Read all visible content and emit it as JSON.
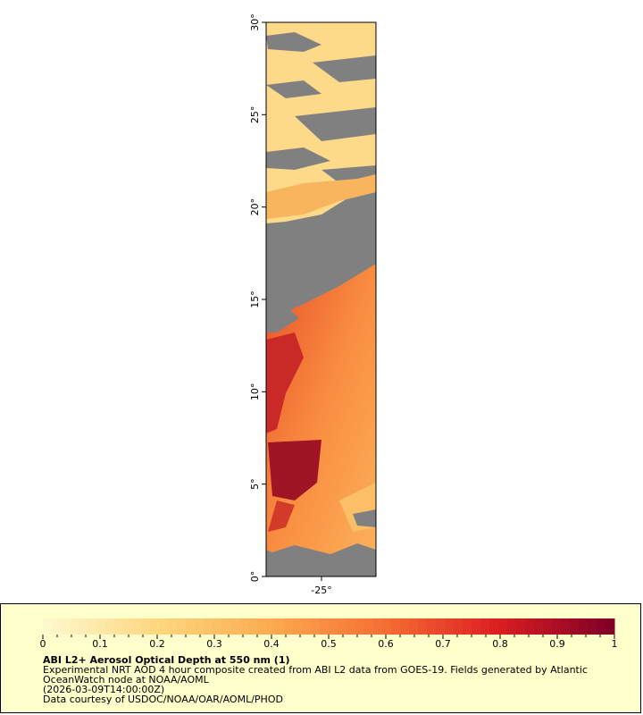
{
  "map": {
    "lat_labels": [
      "0°",
      "5°",
      "10°",
      "15°",
      "20°",
      "25°",
      "30°"
    ],
    "lon_labels": [
      "-25°"
    ]
  },
  "colorbar": {
    "range": [
      0,
      1
    ],
    "ticks": [
      0,
      0.1,
      0.2,
      0.3,
      0.4,
      0.5,
      0.6,
      0.7,
      0.8,
      0.9,
      1
    ]
  },
  "legend": {
    "title": "ABI L2+ Aerosol Optical Depth at 550 nm (1)",
    "lines": [
      "Experimental NRT AOD 4 hour composite created from ABI L2 data from GOES-19. Fields generated by Atlantic",
      "OceanWatch node at NOAA/AOML",
      "(2026-03-09T14:00:00Z)",
      "Data courtesy of USDOC/NOAA/OAR/AOML/PHOD"
    ]
  }
}
